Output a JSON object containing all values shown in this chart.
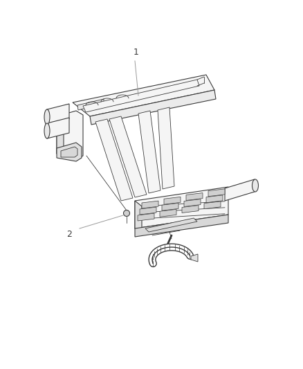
{
  "background_color": "#ffffff",
  "line_color": "#3a3a3a",
  "callout_line_color": "#999999",
  "figure_width": 4.38,
  "figure_height": 5.33,
  "dpi": 100,
  "callout_1_label": "1",
  "callout_2_label": "2"
}
